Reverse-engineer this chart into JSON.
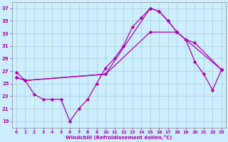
{
  "xlabel": "Windchill (Refroidissement éolien,°C)",
  "background_color": "#cceeff",
  "grid_color": "#aacccc",
  "line_color": "#aa00aa",
  "xlim": [
    -0.5,
    23.5
  ],
  "ylim": [
    18,
    38
  ],
  "yticks": [
    19,
    21,
    23,
    25,
    27,
    29,
    31,
    33,
    35,
    37
  ],
  "xticks": [
    0,
    1,
    2,
    3,
    4,
    5,
    6,
    7,
    8,
    9,
    10,
    11,
    12,
    13,
    14,
    15,
    16,
    17,
    18,
    19,
    20,
    21,
    22,
    23
  ],
  "line1_x": [
    0,
    1,
    2,
    3,
    4,
    5,
    6,
    7,
    8,
    9,
    10,
    11,
    12,
    13,
    14,
    15,
    16,
    17,
    18,
    19,
    20,
    21,
    22,
    23
  ],
  "line1_y": [
    26.8,
    25.5,
    23.3,
    22.5,
    22.5,
    22.5,
    19.0,
    21.0,
    22.5,
    25.0,
    27.5,
    29.0,
    31.0,
    34.0,
    35.5,
    37.0,
    36.5,
    35.0,
    33.2,
    32.0,
    28.5,
    26.5,
    24.0,
    27.2
  ],
  "line2_x": [
    0,
    1,
    10,
    15,
    16,
    17,
    18,
    23
  ],
  "line2_y": [
    26.0,
    25.5,
    26.5,
    37.0,
    36.5,
    35.0,
    33.2,
    27.2
  ],
  "line3_x": [
    0,
    1,
    10,
    15,
    18,
    19,
    20,
    23
  ],
  "line3_y": [
    26.0,
    25.5,
    26.5,
    33.2,
    33.2,
    32.0,
    31.5,
    27.2
  ]
}
